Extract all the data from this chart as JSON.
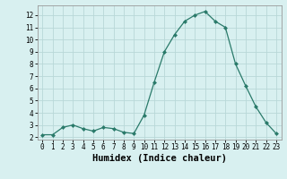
{
  "x": [
    0,
    1,
    2,
    3,
    4,
    5,
    6,
    7,
    8,
    9,
    10,
    11,
    12,
    13,
    14,
    15,
    16,
    17,
    18,
    19,
    20,
    21,
    22,
    23
  ],
  "y": [
    2.2,
    2.2,
    2.8,
    3.0,
    2.7,
    2.5,
    2.8,
    2.7,
    2.4,
    2.3,
    3.8,
    6.5,
    9.0,
    10.4,
    11.5,
    12.0,
    12.3,
    11.5,
    11.0,
    8.0,
    6.2,
    4.5,
    3.2,
    2.3
  ],
  "line_color": "#2a7a6a",
  "marker": "D",
  "marker_size": 2.0,
  "bg_color": "#d8f0f0",
  "grid_color": "#b8d8d8",
  "xlabel": "Humidex (Indice chaleur)",
  "xlim": [
    -0.5,
    23.5
  ],
  "ylim": [
    1.8,
    12.8
  ],
  "yticks": [
    2,
    3,
    4,
    5,
    6,
    7,
    8,
    9,
    10,
    11,
    12
  ],
  "xticks": [
    0,
    1,
    2,
    3,
    4,
    5,
    6,
    7,
    8,
    9,
    10,
    11,
    12,
    13,
    14,
    15,
    16,
    17,
    18,
    19,
    20,
    21,
    22,
    23
  ],
  "tick_label_fontsize": 5.5,
  "xlabel_fontsize": 7.5
}
